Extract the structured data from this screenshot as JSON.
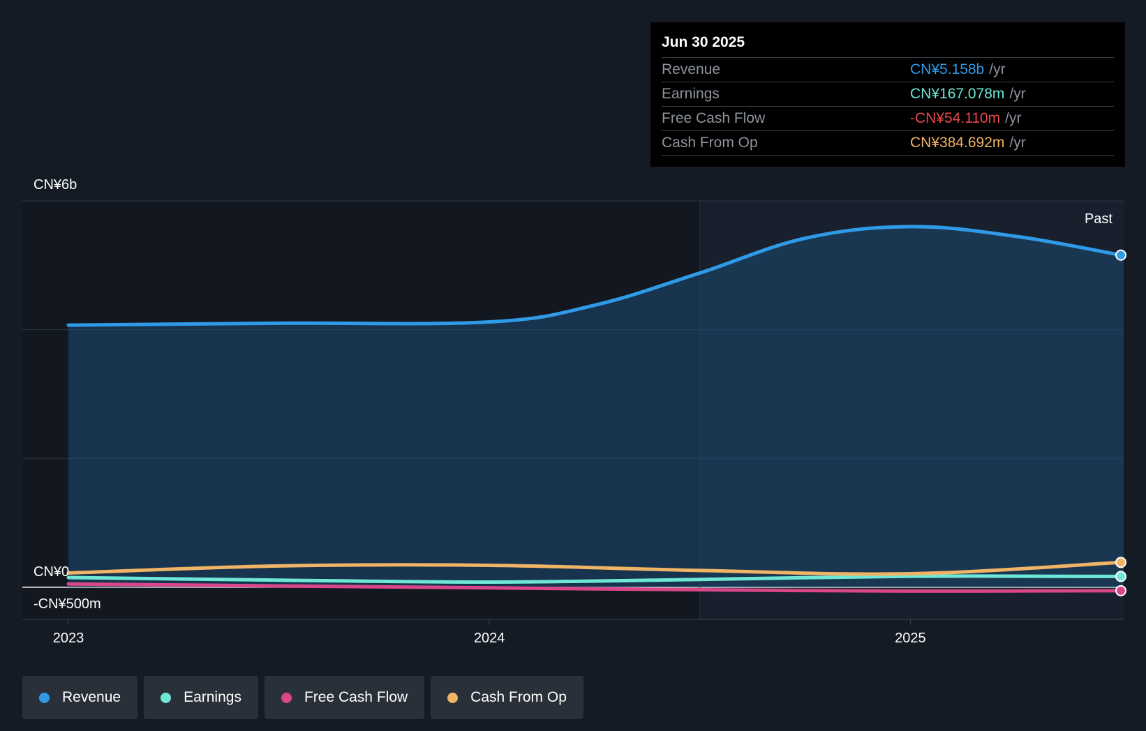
{
  "tooltip": {
    "date": "Jun 30 2025",
    "rows": [
      {
        "label": "Revenue",
        "value": "CN¥5.158b",
        "unit": "/yr",
        "color": "#2f9be8"
      },
      {
        "label": "Earnings",
        "value": "CN¥167.078m",
        "unit": "/yr",
        "color": "#6ee7d6"
      },
      {
        "label": "Free Cash Flow",
        "value": "-CN¥54.110m",
        "unit": "/yr",
        "color": "#e8484a"
      },
      {
        "label": "Cash From Op",
        "value": "CN¥384.692m",
        "unit": "/yr",
        "color": "#f0b466"
      }
    ]
  },
  "legend": [
    {
      "label": "Revenue",
      "color": "#2f9be8"
    },
    {
      "label": "Earnings",
      "color": "#6ee7d6"
    },
    {
      "label": "Free Cash Flow",
      "color": "#d9468a"
    },
    {
      "label": "Cash From Op",
      "color": "#f0b466"
    }
  ],
  "chart_data": {
    "type": "line",
    "past_label": "Past",
    "y_tick_labels": {
      "top": "CN¥6b",
      "zero": "CN¥0",
      "bottom": "-CN¥500m"
    },
    "ylim": [
      -500,
      6000
    ],
    "y_gridlines": [
      0,
      2000,
      4000,
      6000
    ],
    "x_ticks": [
      {
        "label": "2023",
        "x": 2023.0
      },
      {
        "label": "2024",
        "x": 2024.0
      },
      {
        "label": "2025",
        "x": 2025.0
      }
    ],
    "xlim": [
      2022.89,
      2025.5
    ],
    "past_start": 2024.5,
    "series": [
      {
        "name": "Revenue",
        "color": "#2f9be8",
        "x": [
          2023.0,
          2023.5,
          2024.0,
          2024.25,
          2024.5,
          2024.75,
          2025.0,
          2025.25,
          2025.5
        ],
        "y": [
          4070,
          4100,
          4120,
          4380,
          4880,
          5420,
          5600,
          5450,
          5158
        ]
      },
      {
        "name": "Earnings",
        "color": "#6ee7d6",
        "x": [
          2023.0,
          2023.5,
          2024.0,
          2024.5,
          2025.0,
          2025.5
        ],
        "y": [
          150,
          110,
          80,
          120,
          170,
          167
        ]
      },
      {
        "name": "Free Cash Flow",
        "color": "#d9468a",
        "x": [
          2023.0,
          2023.5,
          2024.0,
          2024.5,
          2025.0,
          2025.5
        ],
        "y": [
          50,
          20,
          -10,
          -40,
          -60,
          -54
        ]
      },
      {
        "name": "Cash From Op",
        "color": "#f0b466",
        "x": [
          2023.0,
          2023.5,
          2024.0,
          2024.5,
          2025.0,
          2025.5
        ],
        "y": [
          220,
          330,
          340,
          260,
          210,
          385
        ]
      }
    ]
  }
}
